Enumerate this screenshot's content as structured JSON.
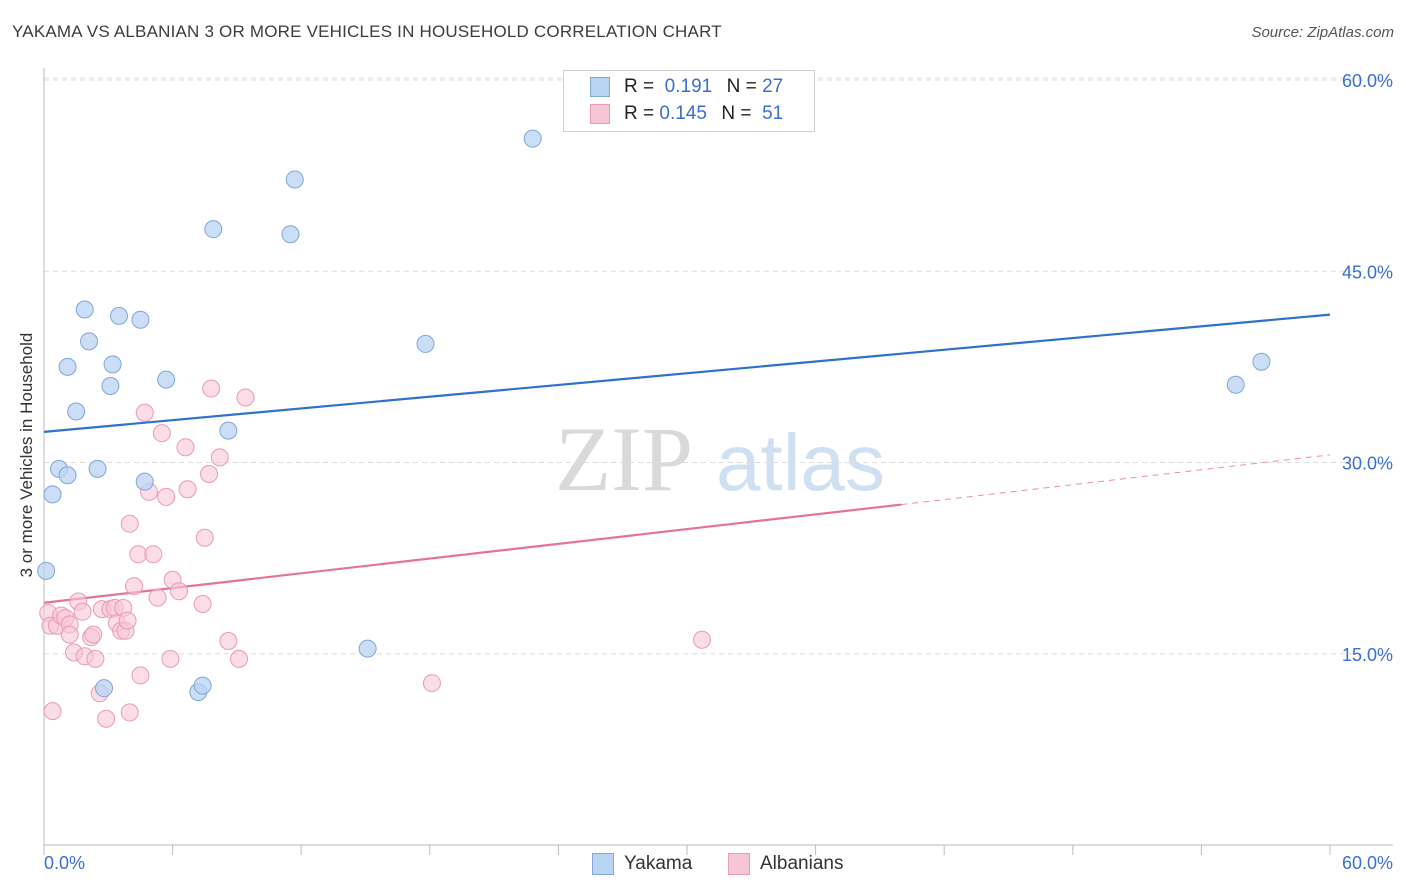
{
  "header": {
    "title": "YAKAMA VS ALBANIAN 3 OR MORE VEHICLES IN HOUSEHOLD CORRELATION CHART",
    "source": "Source: ZipAtlas.com"
  },
  "legend": {
    "r_label": "R =",
    "n_label": "N =",
    "rows": [
      {
        "r": "0.191",
        "n": "27"
      },
      {
        "r": "0.145",
        "n": "51"
      }
    ]
  },
  "watermark": {
    "zip": "ZIP",
    "atlas": "atlas"
  },
  "colors": {
    "yakama_fill": "#b9d3f2",
    "yakama_stroke": "#7fa7d9",
    "yakama_line": "#2f72c9",
    "albanian_fill": "#f7c6d5",
    "albanian_stroke": "#eb9ab3",
    "albanian_line": "#e4739a",
    "tick_text": "#3a6fd0",
    "grid": "#dddddd"
  },
  "chart_data": {
    "type": "scatter",
    "title": "YAKAMA VS ALBANIAN 3 OR MORE VEHICLES IN HOUSEHOLD CORRELATION CHART",
    "xlabel": "",
    "ylabel": "3 or more Vehicles in Household",
    "xlim": [
      0,
      60
    ],
    "ylim": [
      0,
      63
    ],
    "x_tick_labels": [
      "0.0%",
      "60.0%"
    ],
    "y_ticks": [
      15,
      30,
      45,
      60
    ],
    "y_tick_labels": [
      "15.0%",
      "30.0%",
      "45.0%",
      "60.0%"
    ],
    "grid": true,
    "legend_position": "bottom-center",
    "series": [
      {
        "name": "Yakama",
        "points": [
          [
            0.1,
            21.5
          ],
          [
            0.4,
            27.5
          ],
          [
            0.7,
            29.5
          ],
          [
            1.1,
            29.0
          ],
          [
            1.1,
            37.5
          ],
          [
            1.5,
            34.0
          ],
          [
            1.9,
            42.0
          ],
          [
            2.1,
            39.5
          ],
          [
            2.5,
            29.5
          ],
          [
            2.8,
            12.3
          ],
          [
            3.1,
            36.0
          ],
          [
            3.2,
            37.7
          ],
          [
            3.5,
            41.5
          ],
          [
            4.5,
            41.2
          ],
          [
            4.7,
            28.5
          ],
          [
            5.7,
            36.5
          ],
          [
            7.2,
            12.0
          ],
          [
            7.4,
            12.5
          ],
          [
            7.9,
            48.3
          ],
          [
            8.6,
            32.5
          ],
          [
            11.5,
            47.9
          ],
          [
            11.7,
            52.2
          ],
          [
            15.1,
            15.4
          ],
          [
            17.8,
            39.3
          ],
          [
            22.8,
            55.4
          ],
          [
            55.6,
            36.1
          ],
          [
            56.8,
            37.9
          ]
        ],
        "trend": {
          "x": [
            0,
            60
          ],
          "y": [
            32.4,
            41.6
          ]
        }
      },
      {
        "name": "Albanians",
        "points": [
          [
            0.2,
            18.2
          ],
          [
            0.3,
            17.2
          ],
          [
            0.4,
            10.5
          ],
          [
            0.6,
            17.2
          ],
          [
            0.8,
            18.0
          ],
          [
            1.0,
            17.8
          ],
          [
            1.2,
            17.3
          ],
          [
            1.2,
            16.5
          ],
          [
            1.4,
            15.1
          ],
          [
            1.6,
            19.1
          ],
          [
            1.8,
            18.3
          ],
          [
            1.9,
            14.8
          ],
          [
            2.2,
            16.3
          ],
          [
            2.3,
            16.5
          ],
          [
            2.4,
            14.6
          ],
          [
            2.6,
            11.9
          ],
          [
            2.7,
            18.5
          ],
          [
            2.9,
            9.9
          ],
          [
            3.1,
            18.5
          ],
          [
            3.3,
            18.6
          ],
          [
            3.4,
            17.4
          ],
          [
            3.6,
            16.8
          ],
          [
            3.7,
            18.6
          ],
          [
            3.8,
            16.8
          ],
          [
            3.9,
            17.6
          ],
          [
            4.0,
            10.4
          ],
          [
            4.0,
            25.2
          ],
          [
            4.2,
            20.3
          ],
          [
            4.4,
            22.8
          ],
          [
            4.5,
            13.3
          ],
          [
            4.7,
            33.9
          ],
          [
            4.9,
            27.7
          ],
          [
            5.1,
            22.8
          ],
          [
            5.3,
            19.4
          ],
          [
            5.5,
            32.3
          ],
          [
            5.7,
            27.3
          ],
          [
            5.9,
            14.6
          ],
          [
            6.0,
            20.8
          ],
          [
            6.3,
            19.9
          ],
          [
            6.6,
            31.2
          ],
          [
            6.7,
            27.9
          ],
          [
            7.4,
            18.9
          ],
          [
            7.5,
            24.1
          ],
          [
            7.7,
            29.1
          ],
          [
            7.8,
            35.8
          ],
          [
            8.2,
            30.4
          ],
          [
            8.6,
            16.0
          ],
          [
            9.1,
            14.6
          ],
          [
            9.4,
            35.1
          ],
          [
            18.1,
            12.7
          ],
          [
            30.7,
            16.1
          ]
        ],
        "trend": {
          "x": [
            0,
            40
          ],
          "y": [
            19.0,
            26.7
          ]
        },
        "trend_extension": {
          "x": [
            40,
            60
          ],
          "y": [
            26.7,
            30.6
          ]
        }
      }
    ]
  },
  "bottom_legend": {
    "items": [
      "Yakama",
      "Albanians"
    ]
  }
}
